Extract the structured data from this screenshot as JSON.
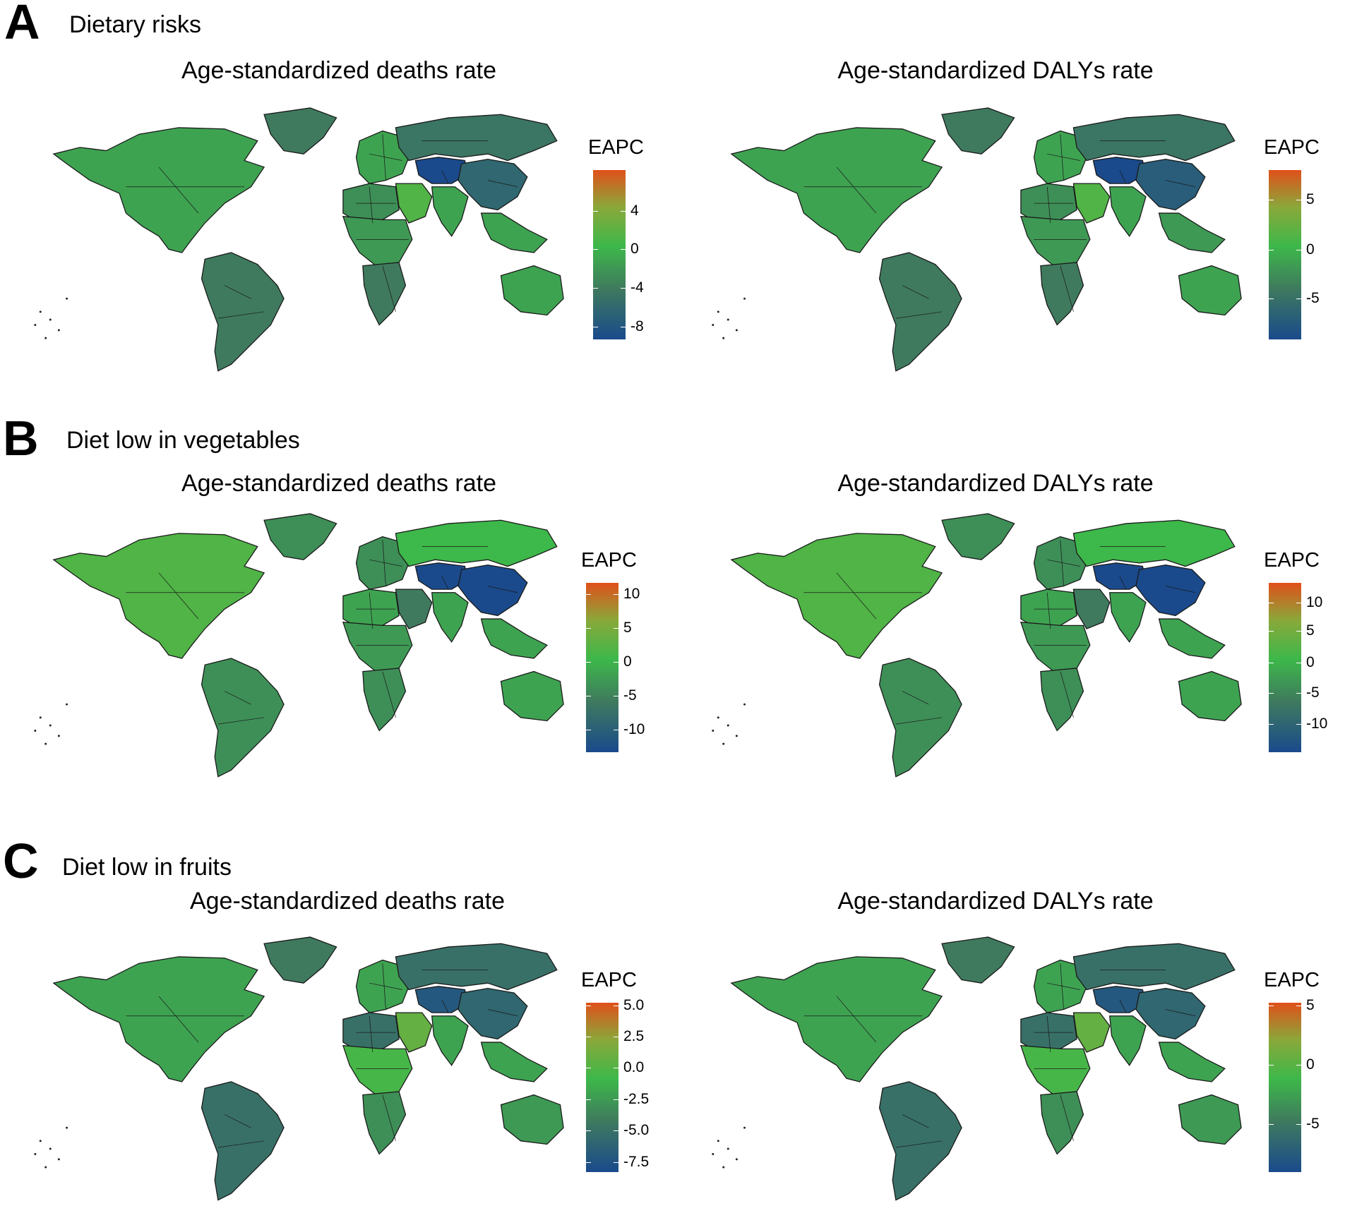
{
  "colors": {
    "scale_low": "#1a4a8c",
    "scale_mid_low": "#3f7a5e",
    "scale_zero": "#3db84a",
    "scale_mid_high": "#8aa83a",
    "scale_high": "#e0501a",
    "border": "#1a1a1a",
    "missing": "#8a8a8a"
  },
  "panels": [
    {
      "letter": "A",
      "title": "Dietary risks",
      "maps": [
        {
          "title": "Age-standardized deaths rate",
          "legend_title": "EAPC",
          "ticks": [
            {
              "label": "4",
              "frac": 0.76
            },
            {
              "label": "0",
              "frac": 0.535
            },
            {
              "label": "-4",
              "frac": 0.305
            },
            {
              "label": "-8",
              "frac": 0.075
            }
          ],
          "region_values": {
            "na": -1,
            "greenland": -3,
            "sa": -3,
            "europe": -1,
            "russia": -3.5,
            "centralasia": -8,
            "china": -5,
            "india": -1,
            "africa_n": -2,
            "africa_c": -1.5,
            "africa_s": -3,
            "mideast": 1,
            "sea": -1,
            "australia": -1
          }
        },
        {
          "title": "Age-standardized DALYs rate",
          "legend_title": "EAPC",
          "ticks": [
            {
              "label": "5",
              "frac": 0.825
            },
            {
              "label": "0",
              "frac": 0.53
            },
            {
              "label": "-5",
              "frac": 0.24
            }
          ],
          "region_values": {
            "na": -1,
            "greenland": -3,
            "sa": -3,
            "europe": -1,
            "russia": -3.5,
            "centralasia": -8,
            "china": -6,
            "india": -1,
            "africa_n": -2,
            "africa_c": -1.5,
            "africa_s": -3,
            "mideast": 1,
            "sea": -1.5,
            "australia": -1
          }
        }
      ]
    },
    {
      "letter": "B",
      "title": "Diet low in vegetables",
      "maps": [
        {
          "title": "Age-standardized deaths rate",
          "legend_title": "EAPC",
          "ticks": [
            {
              "label": "10",
              "frac": 0.935
            },
            {
              "label": "5",
              "frac": 0.735
            },
            {
              "label": "0",
              "frac": 0.535
            },
            {
              "label": "-5",
              "frac": 0.335
            },
            {
              "label": "-10",
              "frac": 0.135
            }
          ],
          "region_values": {
            "na": 1,
            "greenland": -2,
            "sa": -2,
            "europe": -2,
            "russia": 0,
            "centralasia": -11,
            "china": -12,
            "india": -1,
            "africa_n": -1,
            "africa_c": -1.5,
            "africa_s": -2,
            "mideast": -3,
            "sea": -1,
            "australia": -1
          }
        },
        {
          "title": "Age-standardized DALYs rate",
          "legend_title": "EAPC",
          "ticks": [
            {
              "label": "10",
              "frac": 0.885
            },
            {
              "label": "5",
              "frac": 0.715
            },
            {
              "label": "0",
              "frac": 0.53
            },
            {
              "label": "-5",
              "frac": 0.35
            },
            {
              "label": "-10",
              "frac": 0.165
            }
          ],
          "region_values": {
            "na": 1,
            "greenland": -2,
            "sa": -2,
            "europe": -2,
            "russia": 0,
            "centralasia": -11,
            "china": -12,
            "india": -1,
            "africa_n": -1,
            "africa_c": -1.5,
            "africa_s": -2,
            "mideast": -3,
            "sea": -1,
            "australia": -1
          }
        }
      ]
    },
    {
      "letter": "C",
      "title": "Diet low in fruits",
      "maps": [
        {
          "title": "Age-standardized deaths rate",
          "legend_title": "EAPC",
          "ticks": [
            {
              "label": "5.0",
              "frac": 0.985
            },
            {
              "label": "2.5",
              "frac": 0.8
            },
            {
              "label": "0.0",
              "frac": 0.615
            },
            {
              "label": "-2.5",
              "frac": 0.43
            },
            {
              "label": "-5.0",
              "frac": 0.245
            },
            {
              "label": "-7.5",
              "frac": 0.06
            }
          ],
          "region_values": {
            "na": -1,
            "greenland": -3,
            "sa": -4,
            "europe": -1,
            "russia": -4,
            "centralasia": -6.5,
            "china": -5,
            "india": -1,
            "africa_n": -4,
            "africa_c": 0.5,
            "africa_s": -2,
            "mideast": 2,
            "sea": -1,
            "australia": -1.5
          }
        },
        {
          "title": "Age-standardized DALYs rate",
          "legend_title": "EAPC",
          "ticks": [
            {
              "label": "5",
              "frac": 0.985
            },
            {
              "label": "0",
              "frac": 0.635
            },
            {
              "label": "-5",
              "frac": 0.285
            }
          ],
          "region_values": {
            "na": -1,
            "greenland": -3,
            "sa": -4,
            "europe": -1,
            "russia": -4,
            "centralasia": -6.5,
            "china": -5,
            "india": -1,
            "africa_n": -4,
            "africa_c": 0.5,
            "africa_s": -2,
            "mideast": 2,
            "sea": -1,
            "australia": -1.5
          }
        }
      ]
    }
  ]
}
